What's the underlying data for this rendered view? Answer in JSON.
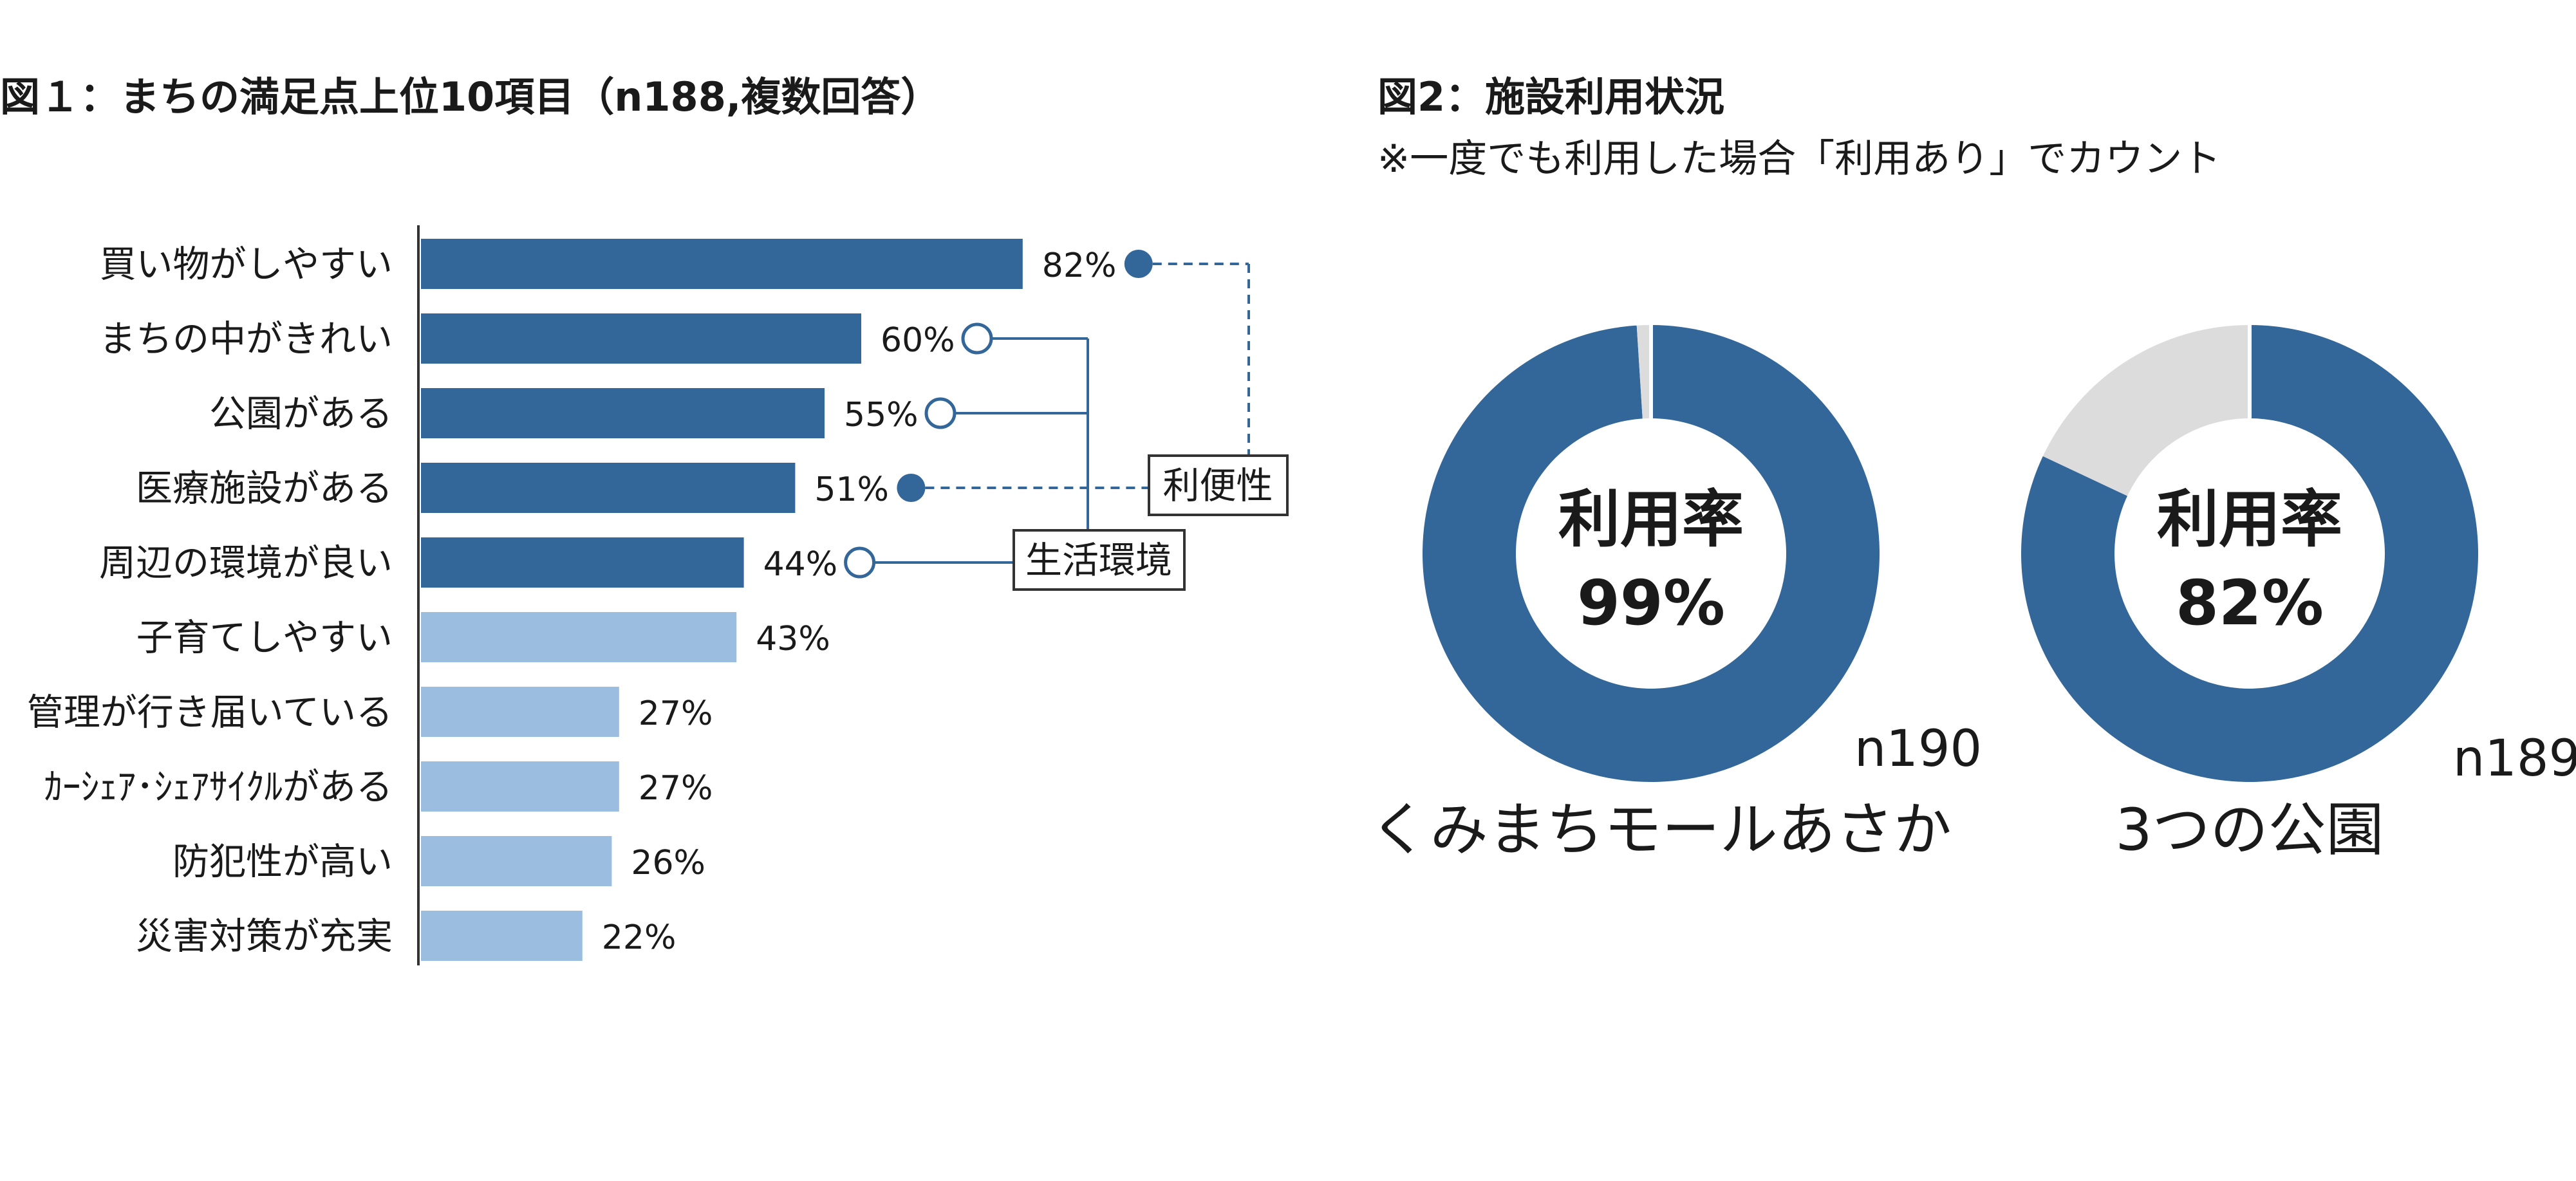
{
  "fig1": {
    "title": "図１：まちの満足点上位10項目（n188,複数回答）"
  },
  "fig2": {
    "title": "図2：施設利用状況",
    "subtitle": "※一度でも利用した場合「利用あり」でカウント"
  },
  "colors": {
    "dark_bar": "#336699",
    "light_bar": "#9bbde0",
    "donut_empty": "#dcdcdc",
    "connector": "#336699"
  },
  "chart_data": [
    {
      "type": "bar",
      "orientation": "horizontal",
      "title": "図１：まちの満足点上位10項目（n188,複数回答）",
      "categories": [
        "買い物がしやすい",
        "まちの中がきれい",
        "公園がある",
        "医療施設がある",
        "周辺の環境が良い",
        "子育てしやすい",
        "管理が行き届いている",
        "ｶｰｼｪｱ･ｼｪｱｻｲｸﾙがある",
        "防犯性が高い",
        "災害対策が充実"
      ],
      "values": [
        82,
        60,
        55,
        51,
        44,
        43,
        27,
        27,
        26,
        22
      ],
      "value_labels": [
        "82%",
        "60%",
        "55%",
        "51%",
        "44%",
        "43%",
        "27%",
        "27%",
        "26%",
        "22%"
      ],
      "highlighted": [
        true,
        true,
        true,
        true,
        true,
        false,
        false,
        false,
        false,
        false
      ],
      "groups": [
        {
          "name": "利便性",
          "members": [
            0,
            3
          ],
          "marker": "filled"
        },
        {
          "name": "生活環境",
          "members": [
            1,
            2,
            4
          ],
          "marker": "hollow"
        }
      ]
    },
    {
      "type": "pie",
      "donut": true,
      "name": "くみまちモールあさか",
      "center_label": "利用率",
      "center_value": "99%",
      "n_label": "n190",
      "value": 99
    },
    {
      "type": "pie",
      "donut": true,
      "name": "3つの公園",
      "center_label": "利用率",
      "center_value": "82%",
      "n_label": "n189",
      "value": 82
    }
  ]
}
